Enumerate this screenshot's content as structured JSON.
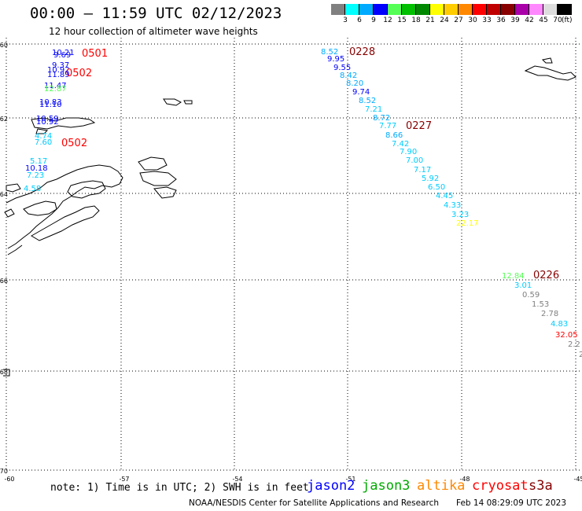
{
  "title": "00:00 — 11:59 UTC 02/12/2023",
  "subtitle": "12 hour collection of altimeter wave heights",
  "legend": {
    "unit": "(ft)",
    "bins": [
      {
        "label": "3",
        "color": "#808080"
      },
      {
        "label": "6",
        "color": "#00ffff"
      },
      {
        "label": "9",
        "color": "#00aaff"
      },
      {
        "label": "12",
        "color": "#0000ff"
      },
      {
        "label": "15",
        "color": "#55ff55"
      },
      {
        "label": "18",
        "color": "#00c000"
      },
      {
        "label": "21",
        "color": "#008800"
      },
      {
        "label": "24",
        "color": "#ffff00"
      },
      {
        "label": "27",
        "color": "#ffcc00"
      },
      {
        "label": "30",
        "color": "#ff8800"
      },
      {
        "label": "33",
        "color": "#ff0000"
      },
      {
        "label": "36",
        "color": "#c00000"
      },
      {
        "label": "39",
        "color": "#880000"
      },
      {
        "label": "42",
        "color": "#aa00aa"
      },
      {
        "label": "45",
        "color": "#ff88ff"
      },
      {
        "label": "70",
        "color": "#dddddd"
      },
      {
        "label": "",
        "color": "#000000"
      }
    ]
  },
  "axes": {
    "lat_labels": [
      "-60",
      "-62",
      "-64",
      "-66",
      "-68",
      "-70"
    ],
    "lon_labels": [
      "-60",
      "-57",
      "-54",
      "-51",
      "-48",
      "-45"
    ]
  },
  "passes": [
    {
      "label": "0501",
      "color": "#ff0000",
      "items": [
        {
          "v": "10.21",
          "c": "#0000ff"
        },
        {
          "v": "9.69",
          "c": "#0000ff"
        }
      ]
    },
    {
      "label": "0502",
      "color": "#ff0000",
      "items": [
        {
          "v": "9.37",
          "c": "#0000ff"
        },
        {
          "v": "10.92",
          "c": "#0000ff"
        },
        {
          "v": "11.89",
          "c": "#0000ff"
        },
        {
          "v": "11.47",
          "c": "#0000ff"
        },
        {
          "v": "12.87",
          "c": "#55ff55"
        },
        {
          "v": "10.83",
          "c": "#0000ff"
        },
        {
          "v": "11.10",
          "c": "#0000ff"
        },
        {
          "v": "10.59",
          "c": "#0000ff"
        },
        {
          "v": "10.92",
          "c": "#0000ff"
        }
      ]
    },
    {
      "label": "0502",
      "color": "#ff0000",
      "items": [
        {
          "v": "4.74",
          "c": "#00ccff"
        },
        {
          "v": "7.60",
          "c": "#00ccff"
        },
        {
          "v": "5.17",
          "c": "#00ccff"
        },
        {
          "v": "10.18",
          "c": "#0000ff"
        },
        {
          "v": "7.23",
          "c": "#00ccff"
        },
        {
          "v": "4.58",
          "c": "#00ccff"
        }
      ]
    },
    {
      "label": "0228",
      "color": "#880000",
      "items": [
        {
          "v": "8.52",
          "c": "#00aaff"
        },
        {
          "v": "9.95",
          "c": "#0000ff"
        },
        {
          "v": "9.55",
          "c": "#0000ff"
        },
        {
          "v": "8.42",
          "c": "#00aaff"
        },
        {
          "v": "8.20",
          "c": "#00aaff"
        },
        {
          "v": "9.74",
          "c": "#0000ff"
        },
        {
          "v": "8.52",
          "c": "#00aaff"
        },
        {
          "v": "7.21",
          "c": "#00ccff"
        },
        {
          "v": "8.72",
          "c": "#00aaff"
        }
      ]
    },
    {
      "label": "0227",
      "color": "#880000",
      "items": [
        {
          "v": "7.77",
          "c": "#00ccff"
        },
        {
          "v": "8.66",
          "c": "#00aaff"
        },
        {
          "v": "7.42",
          "c": "#00ccff"
        },
        {
          "v": "7.90",
          "c": "#00ccff"
        },
        {
          "v": "7.00",
          "c": "#00ccff"
        },
        {
          "v": "7.17",
          "c": "#00ccff"
        },
        {
          "v": "5.92",
          "c": "#00ccff"
        },
        {
          "v": "6.50",
          "c": "#00ccff"
        },
        {
          "v": "4.45",
          "c": "#00ccff"
        },
        {
          "v": "4.33",
          "c": "#00ccff"
        },
        {
          "v": "3.23",
          "c": "#00ccff"
        },
        {
          "v": "22.17",
          "c": "#ffff00"
        }
      ]
    },
    {
      "label": "0226",
      "color": "#880000",
      "items": [
        {
          "v": "12.84",
          "c": "#55ff55"
        },
        {
          "v": "3.01",
          "c": "#00ccff"
        },
        {
          "v": "0.59",
          "c": "#808080"
        },
        {
          "v": "1.53",
          "c": "#808080"
        },
        {
          "v": "2.78",
          "c": "#808080"
        },
        {
          "v": "4.83",
          "c": "#00ccff"
        },
        {
          "v": "32.05",
          "c": "#ff0000"
        },
        {
          "v": "2.2",
          "c": "#808080"
        },
        {
          "v": "2",
          "c": "#808080"
        }
      ]
    }
  ],
  "note": "note: 1) Time is in UTC; 2) SWH is in feet",
  "satellites": [
    {
      "name": "jason2",
      "color": "#0000ff"
    },
    {
      "name": "jason3",
      "color": "#00aa00"
    },
    {
      "name": "altika",
      "color": "#ff8800"
    },
    {
      "name": "cryosat",
      "color": "#ff0000"
    },
    {
      "name": "s3a",
      "color": "#880000"
    }
  ],
  "credit": "NOAA/NESDIS Center for Satellite Applications and Research",
  "timestamp": "Feb 14 08:29:09 UTC 2023"
}
